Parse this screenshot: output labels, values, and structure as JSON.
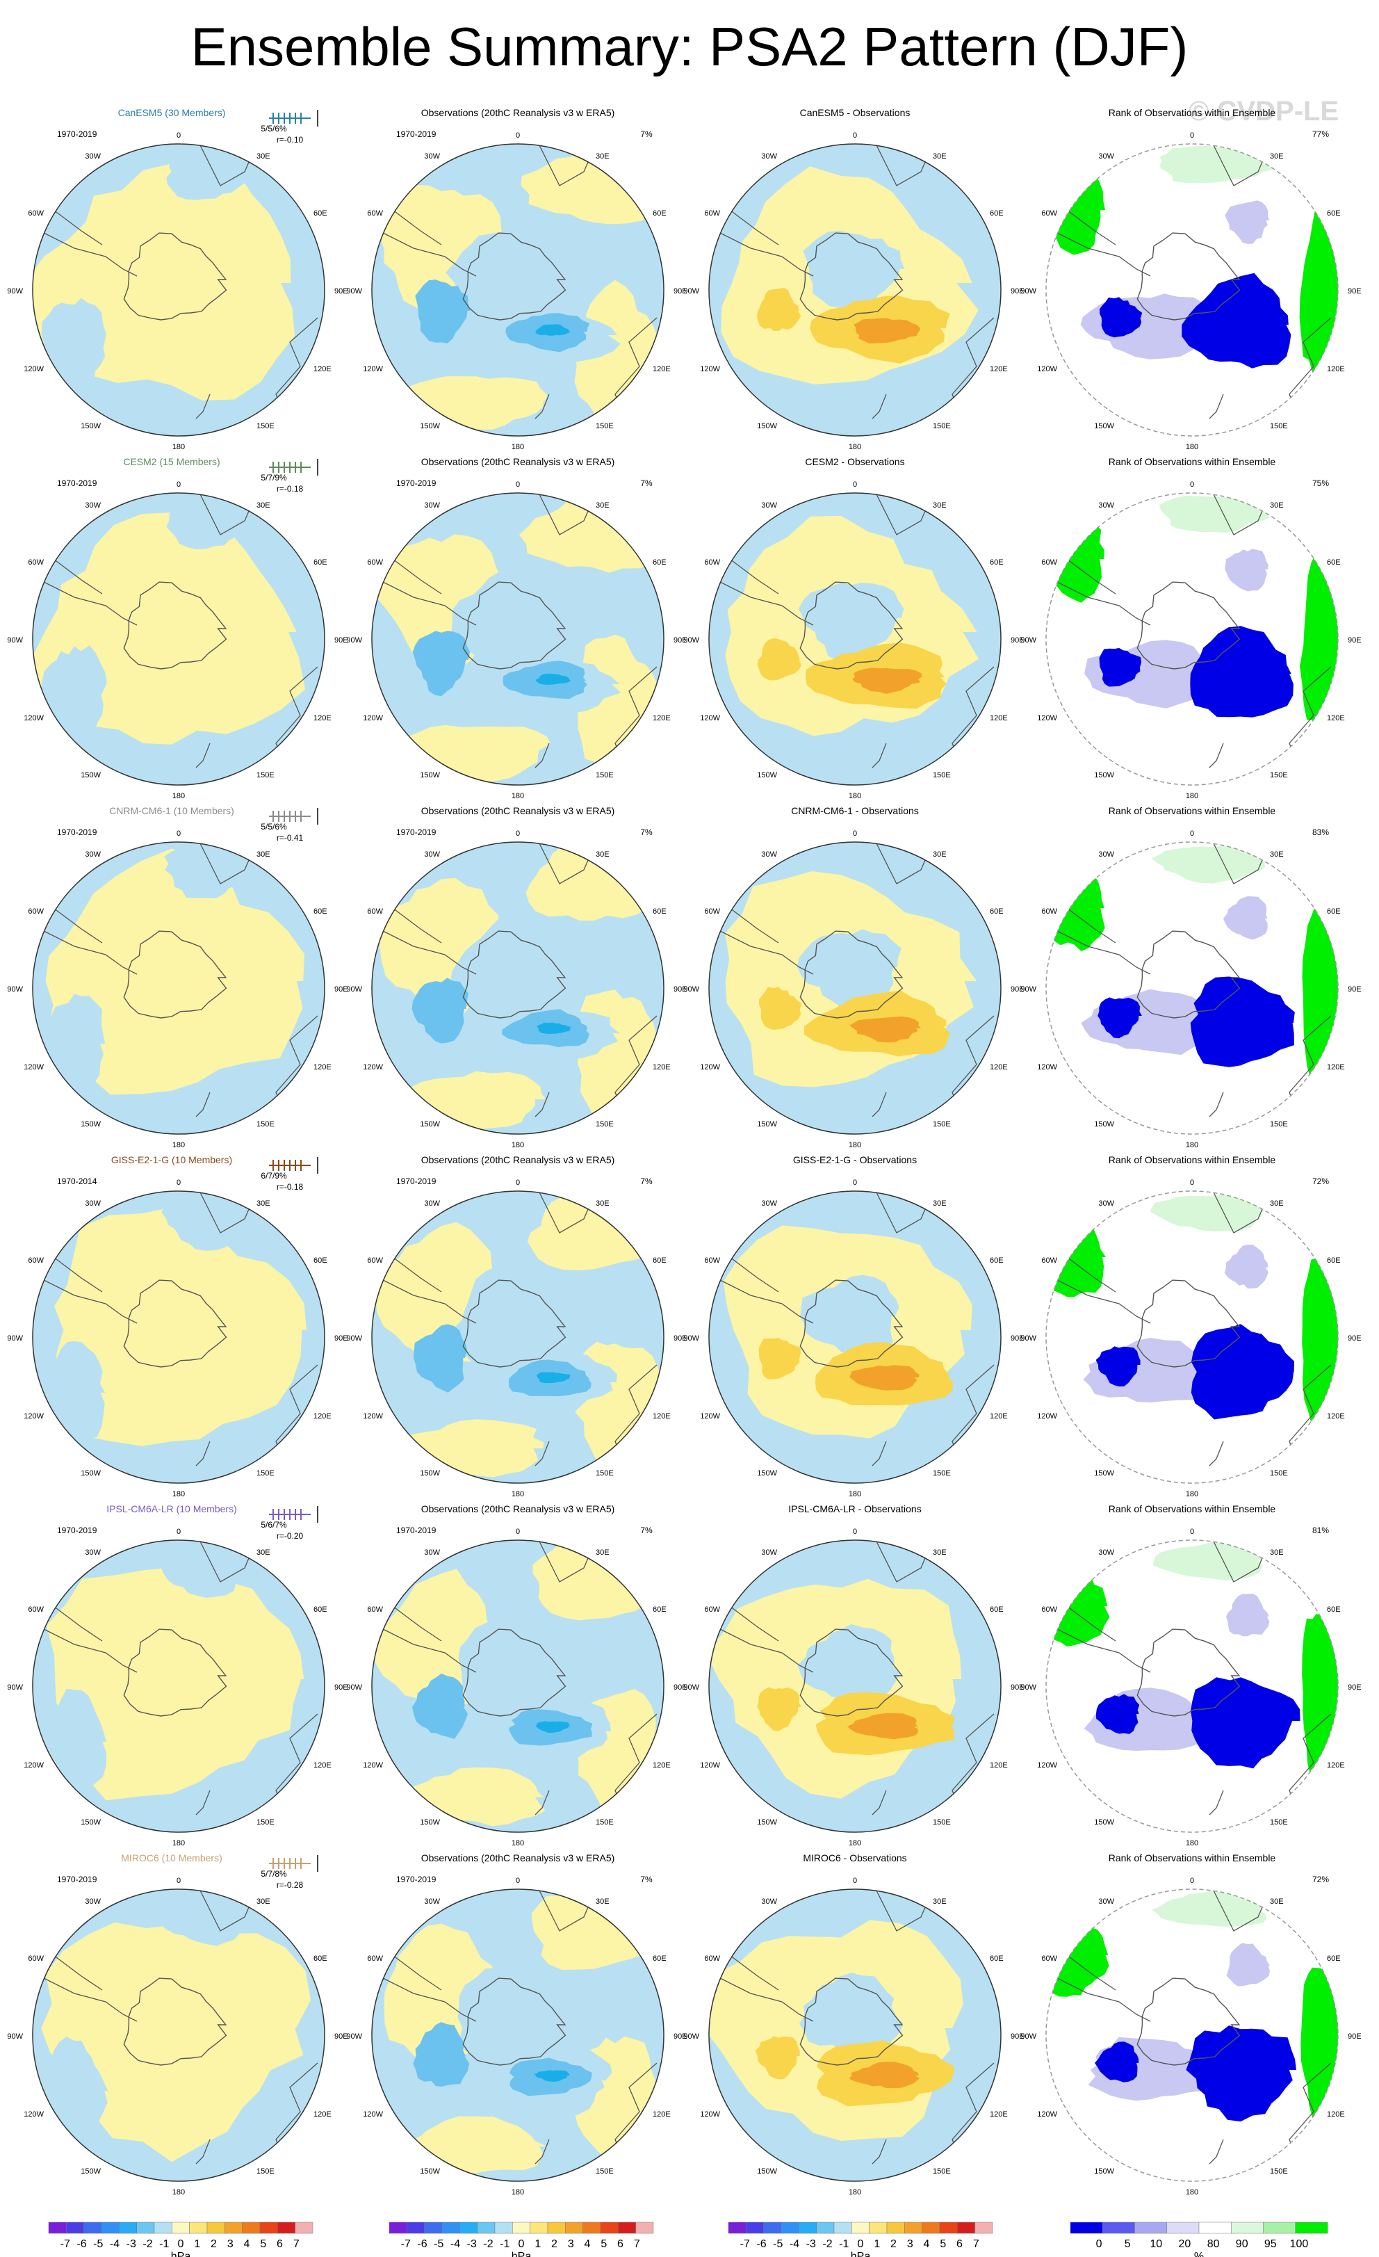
{
  "title": "Ensemble Summary: PSA2 Pattern (DJF)",
  "watermark": "© CVDP-LE",
  "chart_data": {
    "type": "heatmap",
    "projection": "south-polar-stereographic",
    "longitude_labels": [
      "0",
      "30E",
      "60E",
      "90E",
      "120E",
      "150E",
      "180",
      "150W",
      "120W",
      "90W",
      "60W",
      "30W"
    ],
    "column_titles": {
      "obs": "Observations (20thC Reanalysis v3 w ERA5)",
      "diff_suffix": " - Observations",
      "rank": "Rank of Observations within Ensemble"
    },
    "observations": {
      "period": "1970-2019",
      "variance": "7%"
    },
    "colors": {
      "neg1": "#b8e0f2",
      "neg2": "#6cc2ee",
      "neg3": "#1aaee8",
      "pos1": "#fcf4a6",
      "pos2": "#f8d54a",
      "pos3": "#f2a22a",
      "rank_low": "#0000e6",
      "rank_lowmid": "#c8c8f2",
      "rank_highmid": "#d8f7d8",
      "rank_high": "#00ee00",
      "coast": "#555555"
    },
    "models": [
      {
        "name": "CanESM5 (30 Members)",
        "short": "CanESM5",
        "color": "#2a7ea8",
        "period": "1970-2019",
        "pct": "5/5/6%",
        "r": "r=-0.10",
        "rank_pct": "77%"
      },
      {
        "name": "CESM2 (15 Members)",
        "short": "CESM2",
        "color": "#5f8a5f",
        "period": "1970-2019",
        "pct": "5/7/9%",
        "r": "r=-0.18",
        "rank_pct": "75%"
      },
      {
        "name": "CNRM-CM6-1 (10 Members)",
        "short": "CNRM-CM6-1",
        "color": "#8c8c8c",
        "period": "1970-2019",
        "pct": "5/5/6%",
        "r": "r=-0.41",
        "rank_pct": "83%"
      },
      {
        "name": "GISS-E2-1-G (10 Members)",
        "short": "GISS-E2-1-G",
        "color": "#8a4a1a",
        "period": "1970-2014",
        "pct": "6/7/9%",
        "r": "r=-0.18",
        "rank_pct": "72%"
      },
      {
        "name": "IPSL-CM6A-LR (10 Members)",
        "short": "IPSL-CM6A-LR",
        "color": "#7a5cc4",
        "period": "1970-2019",
        "pct": "5/6/7%",
        "r": "r=-0.20",
        "rank_pct": "81%"
      },
      {
        "name": "MIROC6 (10 Members)",
        "short": "MIROC6",
        "color": "#c8a070",
        "period": "1970-2019",
        "pct": "5/7/8%",
        "r": "r=-0.28",
        "rank_pct": "72%"
      }
    ],
    "colorbar_hpa": {
      "labels": [
        "-7",
        "-6",
        "-5",
        "-4",
        "-3",
        "-2",
        "-1",
        "0",
        "1",
        "2",
        "3",
        "4",
        "5",
        "6",
        "7"
      ],
      "colors": [
        "#7a1fd8",
        "#4a3ce8",
        "#3c6cf0",
        "#3090f5",
        "#28acf5",
        "#6cc6f2",
        "#b4e0f4",
        "#fdf8c0",
        "#fce67a",
        "#f8c83c",
        "#f2a22a",
        "#ee7a1e",
        "#e84418",
        "#d41e1e",
        "#f2b0b0"
      ],
      "unit": "hPa"
    },
    "colorbar_rank": {
      "labels": [
        "0",
        "5",
        "10",
        "20",
        "80",
        "90",
        "95",
        "100"
      ],
      "colors": [
        "#0000e6",
        "#5a5af0",
        "#a8a8f0",
        "#dcdcf6",
        "#ffffff",
        "#dcf8dc",
        "#a8f0a8",
        "#00ee00"
      ],
      "unit": "%"
    }
  }
}
